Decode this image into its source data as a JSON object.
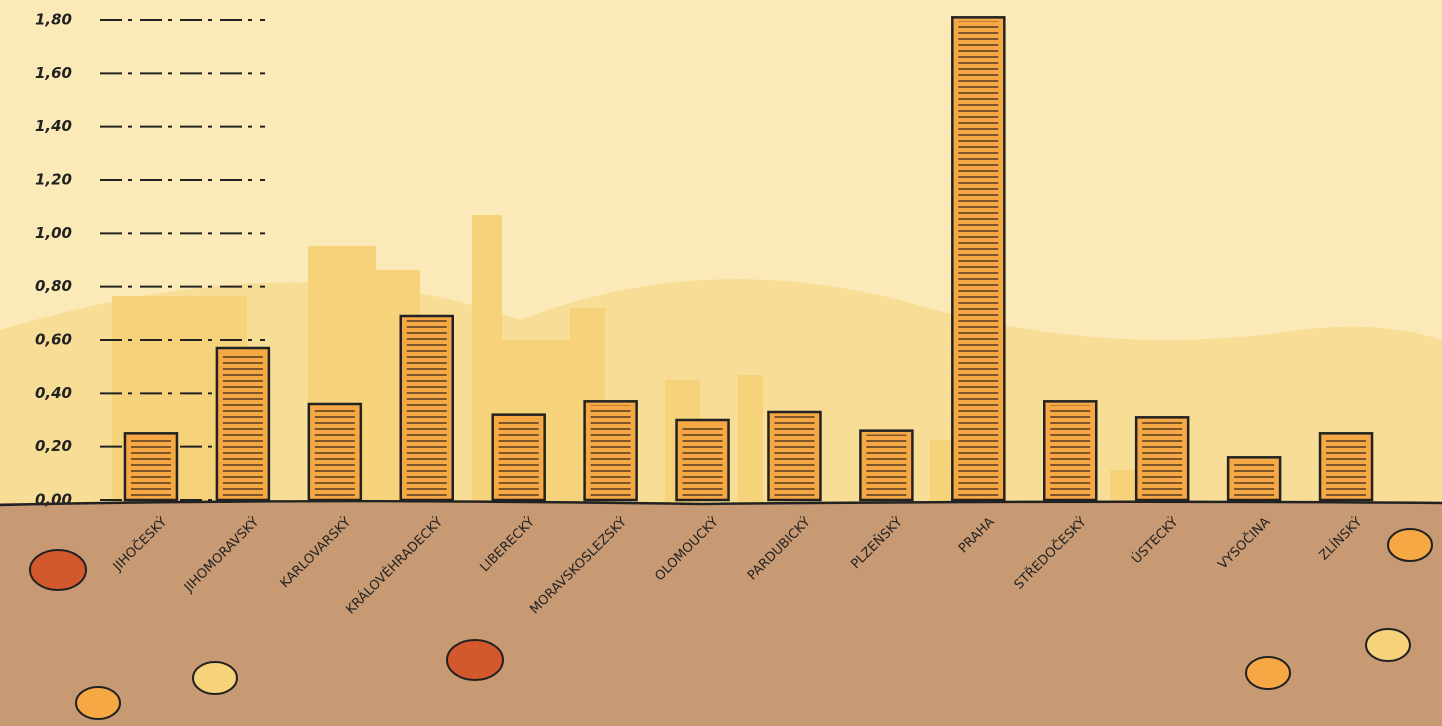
{
  "chart_data": {
    "type": "bar",
    "categories": [
      "JIHOČESKÝ",
      "JIHOMORAVSKÝ",
      "KARLOVARSKÝ",
      "KRÁLOVÉHRADECKÝ",
      "LIBERECKÝ",
      "MORAVSKOSLEZSKÝ",
      "OLOMOUCKÝ",
      "PARDUBICKÝ",
      "PLZEŇSKÝ",
      "PRAHA",
      "STŘEDOČESKÝ",
      "ÚSTECKÝ",
      "VYSOČINA",
      "ZLÍNSKÝ"
    ],
    "values": [
      0.25,
      0.57,
      0.36,
      0.69,
      0.32,
      0.37,
      0.3,
      0.33,
      0.26,
      1.81,
      0.37,
      0.31,
      0.16,
      0.25
    ],
    "color": "#f6a844",
    "ylim": [
      0,
      1.8
    ],
    "yticks": [
      {
        "value": 0,
        "label": "0,00"
      },
      {
        "value": 0.2,
        "label": "0,20"
      },
      {
        "value": 0.4,
        "label": "0,40"
      },
      {
        "value": 0.6,
        "label": "0,60"
      },
      {
        "value": 0.8,
        "label": "0,80"
      },
      {
        "value": 1.0,
        "label": "1,00"
      },
      {
        "value": 1.2,
        "label": "1,20"
      },
      {
        "value": 1.4,
        "label": "1,40"
      },
      {
        "value": 1.6,
        "label": "1,60"
      },
      {
        "value": 1.8,
        "label": "1,80"
      }
    ],
    "grid": true
  }
}
